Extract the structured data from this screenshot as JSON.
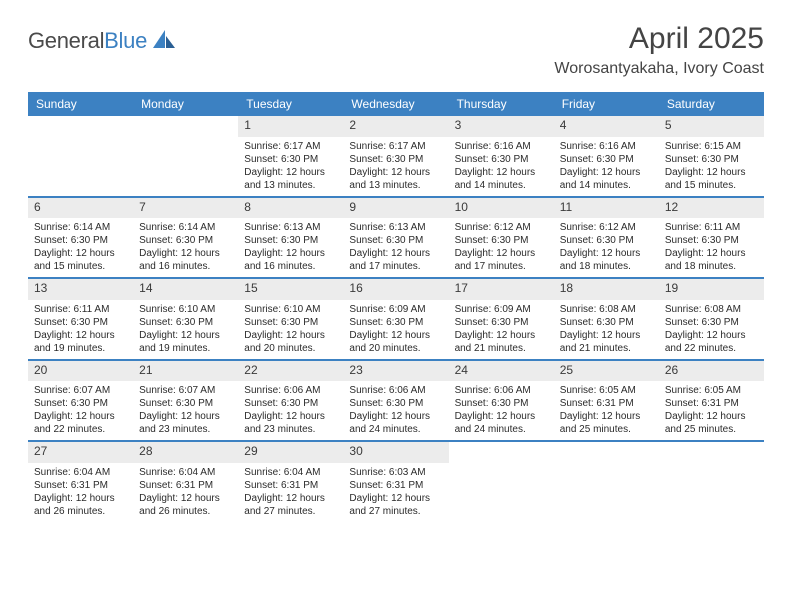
{
  "brand": {
    "general": "General",
    "blue": "Blue"
  },
  "title": {
    "month": "April 2025",
    "location": "Worosantyakaha, Ivory Coast"
  },
  "colors": {
    "accent": "#3c81c2",
    "header_text": "#ffffff",
    "daynum_bg": "#ececec",
    "text": "#2b2b2b",
    "page_bg": "#ffffff"
  },
  "columns": [
    "Sunday",
    "Monday",
    "Tuesday",
    "Wednesday",
    "Thursday",
    "Friday",
    "Saturday"
  ],
  "weeks": [
    [
      {
        "empty": true
      },
      {
        "empty": true
      },
      {
        "num": "1",
        "sunrise": "6:17 AM",
        "sunset": "6:30 PM",
        "daylight": "12 hours and 13 minutes."
      },
      {
        "num": "2",
        "sunrise": "6:17 AM",
        "sunset": "6:30 PM",
        "daylight": "12 hours and 13 minutes."
      },
      {
        "num": "3",
        "sunrise": "6:16 AM",
        "sunset": "6:30 PM",
        "daylight": "12 hours and 14 minutes."
      },
      {
        "num": "4",
        "sunrise": "6:16 AM",
        "sunset": "6:30 PM",
        "daylight": "12 hours and 14 minutes."
      },
      {
        "num": "5",
        "sunrise": "6:15 AM",
        "sunset": "6:30 PM",
        "daylight": "12 hours and 15 minutes."
      }
    ],
    [
      {
        "num": "6",
        "sunrise": "6:14 AM",
        "sunset": "6:30 PM",
        "daylight": "12 hours and 15 minutes."
      },
      {
        "num": "7",
        "sunrise": "6:14 AM",
        "sunset": "6:30 PM",
        "daylight": "12 hours and 16 minutes."
      },
      {
        "num": "8",
        "sunrise": "6:13 AM",
        "sunset": "6:30 PM",
        "daylight": "12 hours and 16 minutes."
      },
      {
        "num": "9",
        "sunrise": "6:13 AM",
        "sunset": "6:30 PM",
        "daylight": "12 hours and 17 minutes."
      },
      {
        "num": "10",
        "sunrise": "6:12 AM",
        "sunset": "6:30 PM",
        "daylight": "12 hours and 17 minutes."
      },
      {
        "num": "11",
        "sunrise": "6:12 AM",
        "sunset": "6:30 PM",
        "daylight": "12 hours and 18 minutes."
      },
      {
        "num": "12",
        "sunrise": "6:11 AM",
        "sunset": "6:30 PM",
        "daylight": "12 hours and 18 minutes."
      }
    ],
    [
      {
        "num": "13",
        "sunrise": "6:11 AM",
        "sunset": "6:30 PM",
        "daylight": "12 hours and 19 minutes."
      },
      {
        "num": "14",
        "sunrise": "6:10 AM",
        "sunset": "6:30 PM",
        "daylight": "12 hours and 19 minutes."
      },
      {
        "num": "15",
        "sunrise": "6:10 AM",
        "sunset": "6:30 PM",
        "daylight": "12 hours and 20 minutes."
      },
      {
        "num": "16",
        "sunrise": "6:09 AM",
        "sunset": "6:30 PM",
        "daylight": "12 hours and 20 minutes."
      },
      {
        "num": "17",
        "sunrise": "6:09 AM",
        "sunset": "6:30 PM",
        "daylight": "12 hours and 21 minutes."
      },
      {
        "num": "18",
        "sunrise": "6:08 AM",
        "sunset": "6:30 PM",
        "daylight": "12 hours and 21 minutes."
      },
      {
        "num": "19",
        "sunrise": "6:08 AM",
        "sunset": "6:30 PM",
        "daylight": "12 hours and 22 minutes."
      }
    ],
    [
      {
        "num": "20",
        "sunrise": "6:07 AM",
        "sunset": "6:30 PM",
        "daylight": "12 hours and 22 minutes."
      },
      {
        "num": "21",
        "sunrise": "6:07 AM",
        "sunset": "6:30 PM",
        "daylight": "12 hours and 23 minutes."
      },
      {
        "num": "22",
        "sunrise": "6:06 AM",
        "sunset": "6:30 PM",
        "daylight": "12 hours and 23 minutes."
      },
      {
        "num": "23",
        "sunrise": "6:06 AM",
        "sunset": "6:30 PM",
        "daylight": "12 hours and 24 minutes."
      },
      {
        "num": "24",
        "sunrise": "6:06 AM",
        "sunset": "6:30 PM",
        "daylight": "12 hours and 24 minutes."
      },
      {
        "num": "25",
        "sunrise": "6:05 AM",
        "sunset": "6:31 PM",
        "daylight": "12 hours and 25 minutes."
      },
      {
        "num": "26",
        "sunrise": "6:05 AM",
        "sunset": "6:31 PM",
        "daylight": "12 hours and 25 minutes."
      }
    ],
    [
      {
        "num": "27",
        "sunrise": "6:04 AM",
        "sunset": "6:31 PM",
        "daylight": "12 hours and 26 minutes."
      },
      {
        "num": "28",
        "sunrise": "6:04 AM",
        "sunset": "6:31 PM",
        "daylight": "12 hours and 26 minutes."
      },
      {
        "num": "29",
        "sunrise": "6:04 AM",
        "sunset": "6:31 PM",
        "daylight": "12 hours and 27 minutes."
      },
      {
        "num": "30",
        "sunrise": "6:03 AM",
        "sunset": "6:31 PM",
        "daylight": "12 hours and 27 minutes."
      },
      {
        "empty": true
      },
      {
        "empty": true
      },
      {
        "empty": true
      }
    ]
  ],
  "labels": {
    "sunrise": "Sunrise:",
    "sunset": "Sunset:",
    "daylight": "Daylight:"
  }
}
